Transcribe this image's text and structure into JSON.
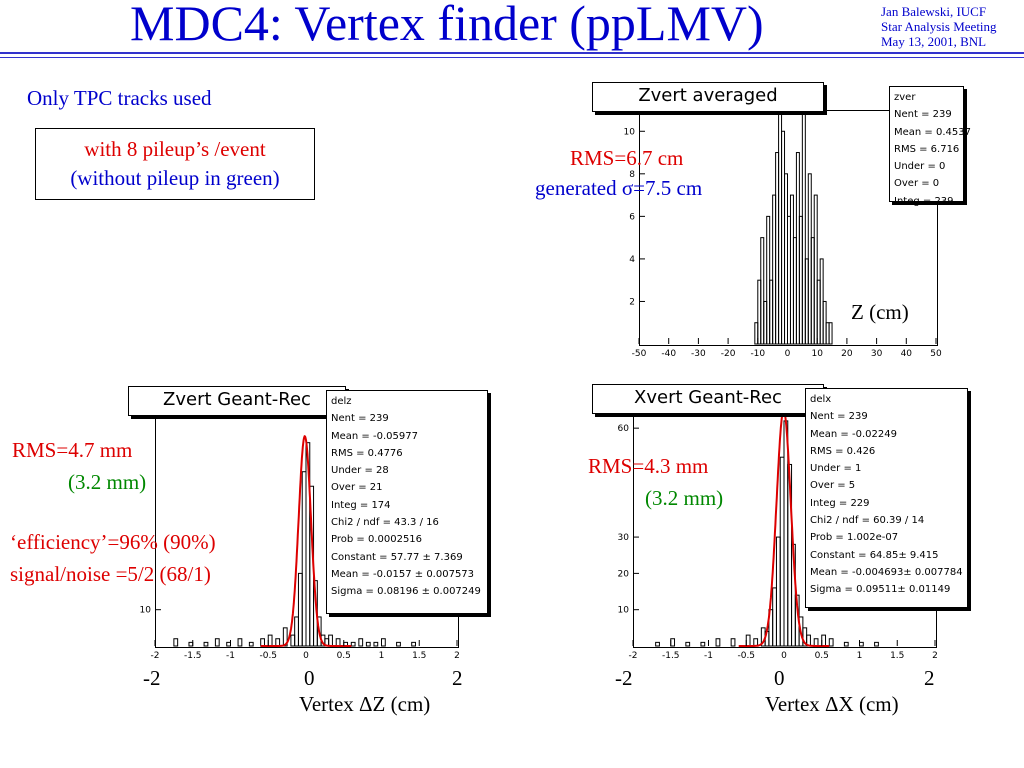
{
  "header": {
    "title": "MDC4:  Vertex finder (ppLMV)",
    "author": "Jan Balewski, IUCF",
    "meeting": "Star Analysis Meeting",
    "date": "May 13, 2001, BNL"
  },
  "notes": {
    "only_tpc": "Only TPC tracks used",
    "pileup_line1": "with 8 pileup’s /event",
    "pileup_line2": "(without  pileup in green)",
    "zvert_rms": "RMS=6.7 cm",
    "zvert_generated": "generated σ=7.5 cm",
    "zvert_axis": "Z  (cm)",
    "delz_rms": "RMS=4.7 mm",
    "delz_rms_green": "(3.2 mm)",
    "delz_eff": "‘efficiency’=96%  (90%)",
    "delz_sn": "signal/noise =5/2  (68/1)",
    "delz_axis": "Vertex  ΔZ  (cm)",
    "delz_tick_m2": "-2",
    "delz_tick_0": "0",
    "delz_tick_2": "2",
    "delx_rms": "RMS=4.3 mm",
    "delx_rms_green": "(3.2 mm)",
    "delx_axis": "Vertex  ΔX  (cm)",
    "delx_tick_m2": "-2",
    "delx_tick_0": "0",
    "delx_tick_2": "2"
  },
  "colors": {
    "title": "#0000cc",
    "rms": "#dd0000",
    "green": "#008800",
    "fit": "#dd0000"
  },
  "plots": {
    "zvert": {
      "title": "Zvert averaged",
      "stats": [
        "zver",
        "Nent = 239",
        "Mean  = 0.4537",
        "RMS   = 6.716",
        "Under =     0",
        "Over  =     0",
        "Integ =   239"
      ]
    },
    "delz": {
      "title": "Zvert Geant-Rec",
      "stats": [
        "delz",
        "Nent = 239",
        "Mean  = -0.05977",
        "RMS   = 0.4776",
        "Under =    28",
        "Over  =    21",
        "Integ =   174",
        "Chi2 / ndf =  43.3 / 16",
        "Prob  = 0.0002516",
        "Constant = 57.77  ± 7.369",
        "Mean     = -0.0157 ± 0.007573",
        "Sigma    = 0.08196  ± 0.007249"
      ]
    },
    "delx": {
      "title": "Xvert Geant-Rec",
      "stats": [
        "delx",
        "Nent = 239",
        "Mean  = -0.02249",
        "RMS   = 0.426",
        "Under =     1",
        "Over  =     5",
        "Integ =   229",
        "Chi2 / ndf = 60.39 / 14",
        "Prob  = 1.002e-07",
        "Constant = 64.85± 9.415",
        "Mean     = -0.004693± 0.007784",
        "Sigma    = 0.09511± 0.01149"
      ]
    }
  },
  "chart_data": [
    {
      "type": "bar",
      "name": "zvert",
      "title": "Zvert averaged",
      "xlabel": "Z  (cm)",
      "xlim": [
        -50,
        50
      ],
      "ylim": [
        0,
        11
      ],
      "x_ticks": [
        -50,
        -40,
        -30,
        -20,
        -10,
        0,
        10,
        20,
        30,
        40,
        50
      ],
      "y_ticks": [
        2,
        4,
        6,
        8,
        10
      ],
      "bin_width": 1,
      "bins_x": [
        -11,
        -10,
        -9,
        -8,
        -7,
        -6,
        -5,
        -4,
        -3,
        -2,
        -1,
        0,
        1,
        2,
        3,
        4,
        5,
        6,
        7,
        8,
        9,
        10,
        11,
        12,
        13,
        14
      ],
      "counts": [
        1,
        3,
        5,
        2,
        6,
        3,
        7,
        9,
        12,
        10,
        8,
        6,
        7,
        5,
        9,
        6,
        11,
        4,
        8,
        5,
        7,
        3,
        4,
        2,
        1,
        1
      ]
    },
    {
      "type": "bar",
      "name": "delz",
      "title": "Zvert Geant-Rec",
      "xlabel": "Vertex  ΔZ  (cm)",
      "xlim": [
        -2,
        2
      ],
      "ylim": [
        0,
        65
      ],
      "x_ticks": [
        -2,
        -1.5,
        -1,
        -0.5,
        0,
        0.5,
        1,
        1.5,
        2
      ],
      "y_ticks": [
        10
      ],
      "bin_width": 0.05,
      "bins_x": [
        -1.75,
        -1.55,
        -1.35,
        -1.2,
        -1.05,
        -0.9,
        -0.75,
        -0.6,
        -0.5,
        -0.4,
        -0.3,
        -0.2,
        -0.15,
        -0.1,
        -0.05,
        0,
        0.05,
        0.1,
        0.15,
        0.2,
        0.25,
        0.3,
        0.4,
        0.5,
        0.6,
        0.7,
        0.8,
        0.9,
        1.0,
        1.2,
        1.4
      ],
      "counts": [
        2,
        1,
        1,
        2,
        1,
        2,
        1,
        2,
        3,
        2,
        5,
        3,
        8,
        20,
        48,
        56,
        44,
        18,
        8,
        3,
        2,
        3,
        2,
        1,
        1,
        2,
        1,
        1,
        2,
        1,
        1
      ],
      "fit": {
        "constant": 57.77,
        "mean": -0.0157,
        "sigma": 0.08196
      }
    },
    {
      "type": "bar",
      "name": "delx",
      "title": "Xvert Geant-Rec",
      "xlabel": "Vertex  ΔX  (cm)",
      "xlim": [
        -2,
        2
      ],
      "ylim": [
        0,
        65
      ],
      "x_ticks": [
        -2,
        -1.5,
        -1,
        -0.5,
        0,
        0.5,
        1,
        1.5,
        2
      ],
      "y_ticks": [
        10,
        20,
        30,
        60
      ],
      "bin_width": 0.05,
      "bins_x": [
        -1.7,
        -1.5,
        -1.3,
        -1.1,
        -0.9,
        -0.7,
        -0.5,
        -0.4,
        -0.3,
        -0.25,
        -0.2,
        -0.15,
        -0.1,
        -0.05,
        0,
        0.05,
        0.1,
        0.15,
        0.2,
        0.25,
        0.3,
        0.4,
        0.5,
        0.6,
        0.8,
        1.0,
        1.2
      ],
      "counts": [
        1,
        2,
        1,
        1,
        2,
        2,
        3,
        2,
        5,
        4,
        10,
        16,
        30,
        52,
        62,
        50,
        28,
        14,
        8,
        5,
        3,
        2,
        3,
        2,
        1,
        1,
        1
      ],
      "fit": {
        "constant": 64.85,
        "mean": -0.004693,
        "sigma": 0.09511
      }
    }
  ]
}
